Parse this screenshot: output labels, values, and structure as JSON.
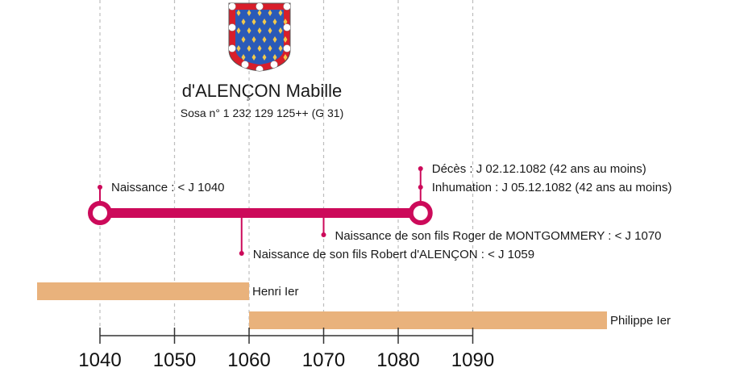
{
  "person": {
    "name": "d'ALENÇON Mabille",
    "sosa": "Sosa n° 1 232 129 125++ (G 31)"
  },
  "coat_of_arms": {
    "icon": "coat-of-arms-icon",
    "field_color": "#2a5ab8",
    "border_color": "#d81e2a",
    "charge_color": "#f2c94c",
    "roundel_color": "#ffffff"
  },
  "colors": {
    "life_bar": "#cc0a5a",
    "reign_bar": "#e9b27c",
    "axis": "#333333",
    "grid": "#bdbdbd"
  },
  "axis": {
    "min": 1040,
    "max": 1090,
    "grid_years": [
      1040,
      1050,
      1060,
      1070,
      1080,
      1090
    ],
    "ticks": [
      "1040",
      "1050",
      "1060",
      "1070",
      "1080",
      "1090"
    ]
  },
  "life": {
    "start": 1040,
    "end": 1083
  },
  "events_above": [
    {
      "year": 1040,
      "lines": [
        "Naissance : < J 1040"
      ]
    },
    {
      "year": 1083,
      "lines": [
        "Décès : J 02.12.1082 (42 ans au moins)",
        "Inhumation : J 05.12.1082 (42 ans au moins)"
      ]
    }
  ],
  "events_below": [
    {
      "year": 1070,
      "label": "Naissance de son fils Roger de MONTGOMMERY : < J 1070",
      "depth": "short"
    },
    {
      "year": 1059,
      "label": "Naissance de son fils Robert d'ALENÇON : < J 1059",
      "depth": "long"
    }
  ],
  "reigns": [
    {
      "name": "Henri Ier",
      "start": 1031,
      "end": 1060
    },
    {
      "name": "Philippe Ier",
      "start": 1060,
      "end": 1108
    }
  ]
}
